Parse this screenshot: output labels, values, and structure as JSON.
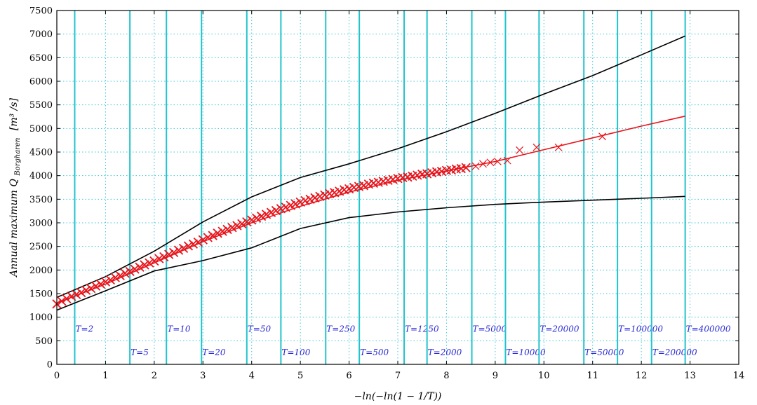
{
  "chart_data": {
    "type": "line",
    "xlabel": "−ln(−ln(1 − 1/T))",
    "ylabel": "Annual maximum Q",
    "ylabel_subscript": "Borgharen",
    "ylabel_unit": "[m³ /s]",
    "xlim": [
      0,
      14
    ],
    "ylim": [
      0,
      7500
    ],
    "xticks": [
      0,
      1,
      2,
      3,
      4,
      5,
      6,
      7,
      8,
      9,
      10,
      11,
      12,
      13,
      14
    ],
    "yticks": [
      0,
      500,
      1000,
      1500,
      2000,
      2500,
      3000,
      3500,
      4000,
      4500,
      5000,
      5500,
      6000,
      6500,
      7000,
      7500
    ],
    "grid": true,
    "grid_style": "dotted",
    "grid_color": "#3cc6d4",
    "return_periods": [
      {
        "T": "2",
        "label": "T=2",
        "x": 0.367,
        "row": "upper"
      },
      {
        "T": "5",
        "label": "T=5",
        "x": 1.5,
        "row": "lower"
      },
      {
        "T": "10",
        "label": "T=10",
        "x": 2.25,
        "row": "upper"
      },
      {
        "T": "20",
        "label": "T=20",
        "x": 2.97,
        "row": "lower"
      },
      {
        "T": "50",
        "label": "T=50",
        "x": 3.9,
        "row": "upper"
      },
      {
        "T": "100",
        "label": "T=100",
        "x": 4.6,
        "row": "lower"
      },
      {
        "T": "250",
        "label": "T=250",
        "x": 5.52,
        "row": "upper"
      },
      {
        "T": "500",
        "label": "T=500",
        "x": 6.21,
        "row": "lower"
      },
      {
        "T": "1250",
        "label": "T=1250",
        "x": 7.13,
        "row": "upper"
      },
      {
        "T": "2000",
        "label": "T=2000",
        "x": 7.6,
        "row": "lower"
      },
      {
        "T": "5000",
        "label": "T=5000",
        "x": 8.52,
        "row": "upper"
      },
      {
        "T": "10000",
        "label": "T=10000",
        "x": 9.21,
        "row": "lower"
      },
      {
        "T": "20000",
        "label": "T=20000",
        "x": 9.9,
        "row": "upper"
      },
      {
        "T": "50000",
        "label": "T=50000",
        "x": 10.82,
        "row": "lower"
      },
      {
        "T": "100000",
        "label": "T=100000",
        "x": 11.51,
        "row": "upper"
      },
      {
        "T": "200000",
        "label": "T=200000",
        "x": 12.21,
        "row": "lower"
      },
      {
        "T": "400000",
        "label": "T=400000",
        "x": 12.9,
        "row": "upper"
      }
    ],
    "series": [
      {
        "kind": "fitted-line",
        "color": "#e8141b",
        "x": [
          0,
          1,
          2,
          3,
          4,
          5,
          6,
          7,
          8,
          9,
          10,
          11,
          12,
          12.9
        ],
        "y": [
          1300,
          1700,
          2150,
          2600,
          3000,
          3350,
          3650,
          3900,
          4100,
          4300,
          4550,
          4800,
          5050,
          5260
        ]
      },
      {
        "kind": "observations",
        "color": "#e8141b",
        "marker": "x",
        "dense_x": [
          0.0,
          0.1,
          0.2,
          0.3,
          0.4,
          0.5,
          0.6,
          0.7,
          0.8,
          0.9,
          1.0,
          1.1,
          1.2,
          1.3,
          1.4,
          1.5,
          1.6,
          1.7,
          1.8,
          1.9,
          2.0,
          2.1,
          2.2,
          2.3,
          2.4,
          2.5,
          2.6,
          2.7,
          2.8,
          2.9,
          3.0,
          3.1,
          3.2,
          3.3,
          3.4,
          3.5,
          3.6,
          3.7,
          3.8,
          3.9,
          4.0,
          4.1,
          4.2,
          4.3,
          4.4,
          4.5,
          4.6,
          4.7,
          4.8,
          4.9,
          5.0,
          5.1,
          5.2,
          5.3,
          5.4,
          5.5,
          5.6,
          5.7,
          5.8,
          5.9,
          6.0,
          6.1,
          6.2,
          6.3,
          6.4,
          6.5,
          6.6,
          6.7,
          6.8,
          6.9,
          7.0,
          7.1,
          7.2,
          7.3,
          7.4,
          7.5,
          7.6,
          7.7,
          7.8,
          7.9,
          8.0,
          8.1,
          8.2,
          8.3,
          8.4
        ],
        "dense_y": [
          1280,
          1340,
          1390,
          1440,
          1480,
          1520,
          1570,
          1610,
          1660,
          1700,
          1750,
          1790,
          1840,
          1880,
          1930,
          1970,
          2020,
          2060,
          2110,
          2150,
          2190,
          2240,
          2280,
          2330,
          2370,
          2420,
          2460,
          2510,
          2550,
          2590,
          2640,
          2690,
          2730,
          2780,
          2820,
          2860,
          2900,
          2940,
          2980,
          3020,
          3060,
          3100,
          3140,
          3180,
          3220,
          3260,
          3300,
          3330,
          3370,
          3400,
          3440,
          3470,
          3500,
          3530,
          3560,
          3590,
          3620,
          3640,
          3670,
          3700,
          3720,
          3750,
          3770,
          3790,
          3820,
          3840,
          3860,
          3880,
          3900,
          3920,
          3940,
          3960,
          3970,
          3990,
          4010,
          4030,
          4040,
          4060,
          4080,
          4090,
          4110,
          4120,
          4140,
          4150,
          4170
        ],
        "sparse_x": [
          8.6,
          8.75,
          8.9,
          9.05,
          9.25,
          9.5,
          9.85,
          10.3,
          11.2
        ],
        "sparse_y": [
          4200,
          4250,
          4280,
          4300,
          4320,
          4540,
          4600,
          4600,
          4830
        ]
      },
      {
        "kind": "upper-bound",
        "color": "#000000",
        "x": [
          0,
          1,
          2,
          3,
          4,
          5,
          6,
          7,
          8,
          9,
          10,
          11,
          12,
          12.9
        ],
        "y": [
          1420,
          1860,
          2400,
          3020,
          3550,
          3960,
          4250,
          4570,
          4930,
          5320,
          5730,
          6120,
          6560,
          6960
        ]
      },
      {
        "kind": "lower-bound",
        "color": "#000000",
        "x": [
          0,
          1,
          2,
          3,
          4,
          5,
          6,
          7,
          8,
          9,
          10,
          11,
          12,
          12.9
        ],
        "y": [
          1150,
          1560,
          1980,
          2200,
          2470,
          2880,
          3110,
          3230,
          3320,
          3390,
          3440,
          3480,
          3520,
          3560
        ]
      }
    ]
  }
}
